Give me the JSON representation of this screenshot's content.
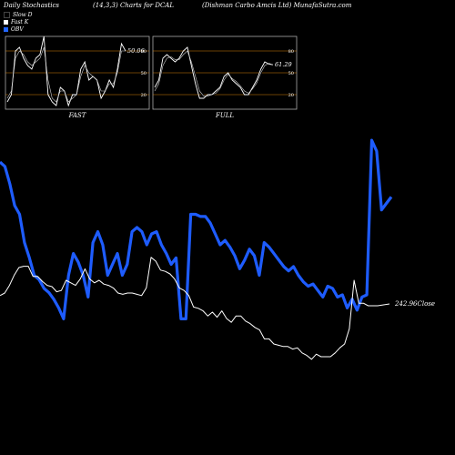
{
  "header": {
    "left": "Daily Stochastics",
    "center": "(14,3,3) Charts for DCAL",
    "right": "(Dishman Carbo Amcis Ltd) MunafaSutra.com"
  },
  "legend": [
    {
      "label": "Slow D",
      "color": "#000000"
    },
    {
      "label": "Fast K",
      "color": "#ffffff"
    },
    {
      "label": "OBV",
      "color": "#2266ff"
    }
  ],
  "colors": {
    "obv": "#1e5cff",
    "price": "#ffffff",
    "slow_d": "#cccccc",
    "fast_k": "#ffffff",
    "levels": "#d4820a"
  },
  "chart_data": [
    {
      "type": "line",
      "name_label": "FAST",
      "ylim": [
        0,
        100
      ],
      "levels": [
        80,
        50,
        20
      ],
      "series": [
        {
          "name": "Fast K",
          "values": [
            10,
            20,
            80,
            85,
            70,
            60,
            55,
            70,
            75,
            100,
            20,
            10,
            5,
            30,
            25,
            5,
            20,
            20,
            55,
            65,
            40,
            45,
            40,
            15,
            25,
            40,
            30,
            55,
            90,
            80
          ]
        },
        {
          "name": "Slow D",
          "values": [
            15,
            25,
            70,
            80,
            75,
            65,
            60,
            65,
            70,
            85,
            40,
            15,
            10,
            25,
            25,
            10,
            15,
            20,
            45,
            60,
            50,
            45,
            40,
            25,
            25,
            35,
            35,
            50,
            80,
            80
          ]
        }
      ],
      "last_value": "50.06"
    },
    {
      "type": "line",
      "name_label": "FULL",
      "ylim": [
        0,
        100
      ],
      "levels": [
        80,
        50,
        20
      ],
      "series": [
        {
          "name": "Fast K",
          "values": [
            30,
            40,
            70,
            75,
            70,
            65,
            70,
            80,
            85,
            60,
            35,
            15,
            15,
            20,
            20,
            25,
            30,
            45,
            50,
            40,
            35,
            30,
            20,
            20,
            30,
            40,
            55,
            65,
            62,
            61
          ]
        },
        {
          "name": "Slow D",
          "values": [
            25,
            35,
            60,
            70,
            72,
            68,
            68,
            75,
            80,
            65,
            45,
            25,
            18,
            18,
            20,
            22,
            28,
            40,
            48,
            42,
            38,
            32,
            25,
            22,
            28,
            36,
            50,
            60,
            63,
            61
          ]
        }
      ],
      "last_value": "61.29"
    },
    {
      "type": "line",
      "series": [
        {
          "name": "OBV",
          "values": [
            82,
            80,
            72,
            62,
            58,
            45,
            38,
            30,
            28,
            24,
            22,
            19,
            15,
            10,
            30,
            40,
            36,
            30,
            20,
            45,
            50,
            44,
            30,
            35,
            40,
            30,
            35,
            50,
            52,
            50,
            44,
            49,
            50,
            44,
            40,
            35,
            38,
            10,
            10,
            58,
            58,
            57,
            57,
            54,
            49,
            44,
            46,
            43,
            39,
            33,
            37,
            42,
            39,
            30,
            45,
            43,
            40,
            37,
            34,
            32,
            34,
            30,
            27,
            25,
            26,
            23,
            20,
            25,
            24,
            20,
            21,
            15,
            19,
            14,
            20,
            21,
            92,
            87,
            60,
            63,
            66
          ],
          "ylim": [
            -40,
            100
          ]
        },
        {
          "name": "Close",
          "values": [
            32,
            30,
            24,
            16,
            10,
            9,
            9,
            17,
            17,
            21,
            24,
            25,
            29,
            28,
            20,
            22,
            24,
            19,
            11,
            19,
            22,
            20,
            23,
            24,
            26,
            30,
            31,
            30,
            30,
            31,
            32,
            26,
            2,
            5,
            12,
            13,
            15,
            19,
            26,
            28,
            32,
            41,
            42,
            44,
            48,
            45,
            49,
            44,
            50,
            53,
            48,
            48,
            52,
            54,
            57,
            59,
            66,
            66,
            70,
            71,
            72,
            72,
            74,
            73,
            77,
            79,
            82,
            78,
            80,
            80,
            80,
            77,
            73,
            70,
            58,
            20,
            38,
            38,
            40,
            40,
            40
          ],
          "ylim": [
            100,
            -30
          ],
          "last_label": "242.96Close"
        }
      ]
    }
  ]
}
